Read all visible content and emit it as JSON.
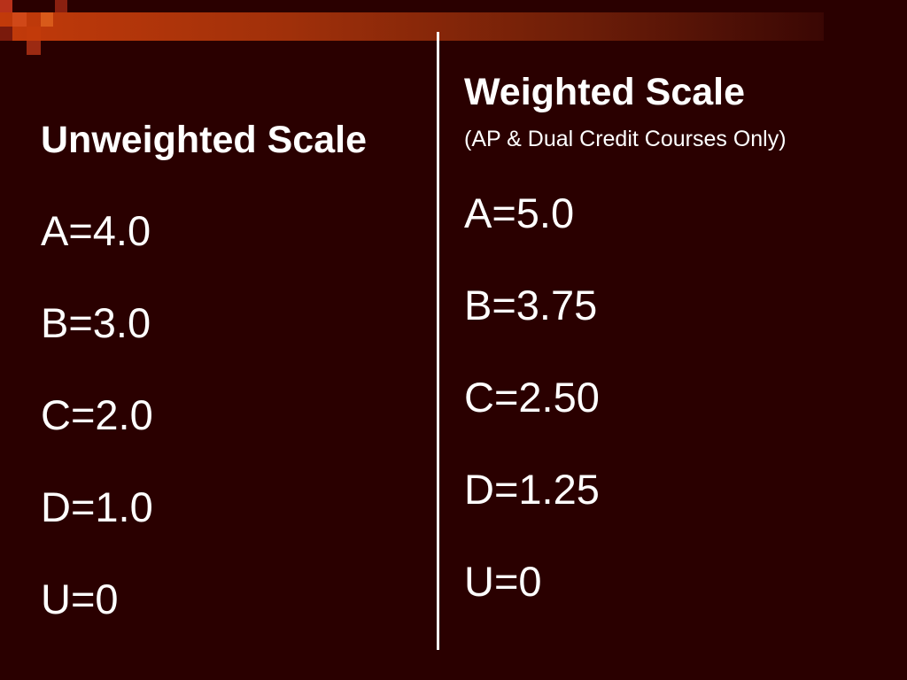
{
  "unweighted": {
    "title": "Unweighted Scale",
    "grades": [
      "A=4.0",
      "B=3.0",
      "C=2.0",
      "D=1.0",
      "U=0"
    ]
  },
  "weighted": {
    "title": "Weighted Scale",
    "subtitle": "(AP & Dual Credit Courses Only)",
    "grades": [
      "A=5.0",
      "B=3.75",
      "C=2.50",
      "D=1.25",
      "U=0"
    ]
  },
  "colors": {
    "background": "#2a0000",
    "accent_band": "#c23a0a",
    "text": "#ffffff"
  }
}
